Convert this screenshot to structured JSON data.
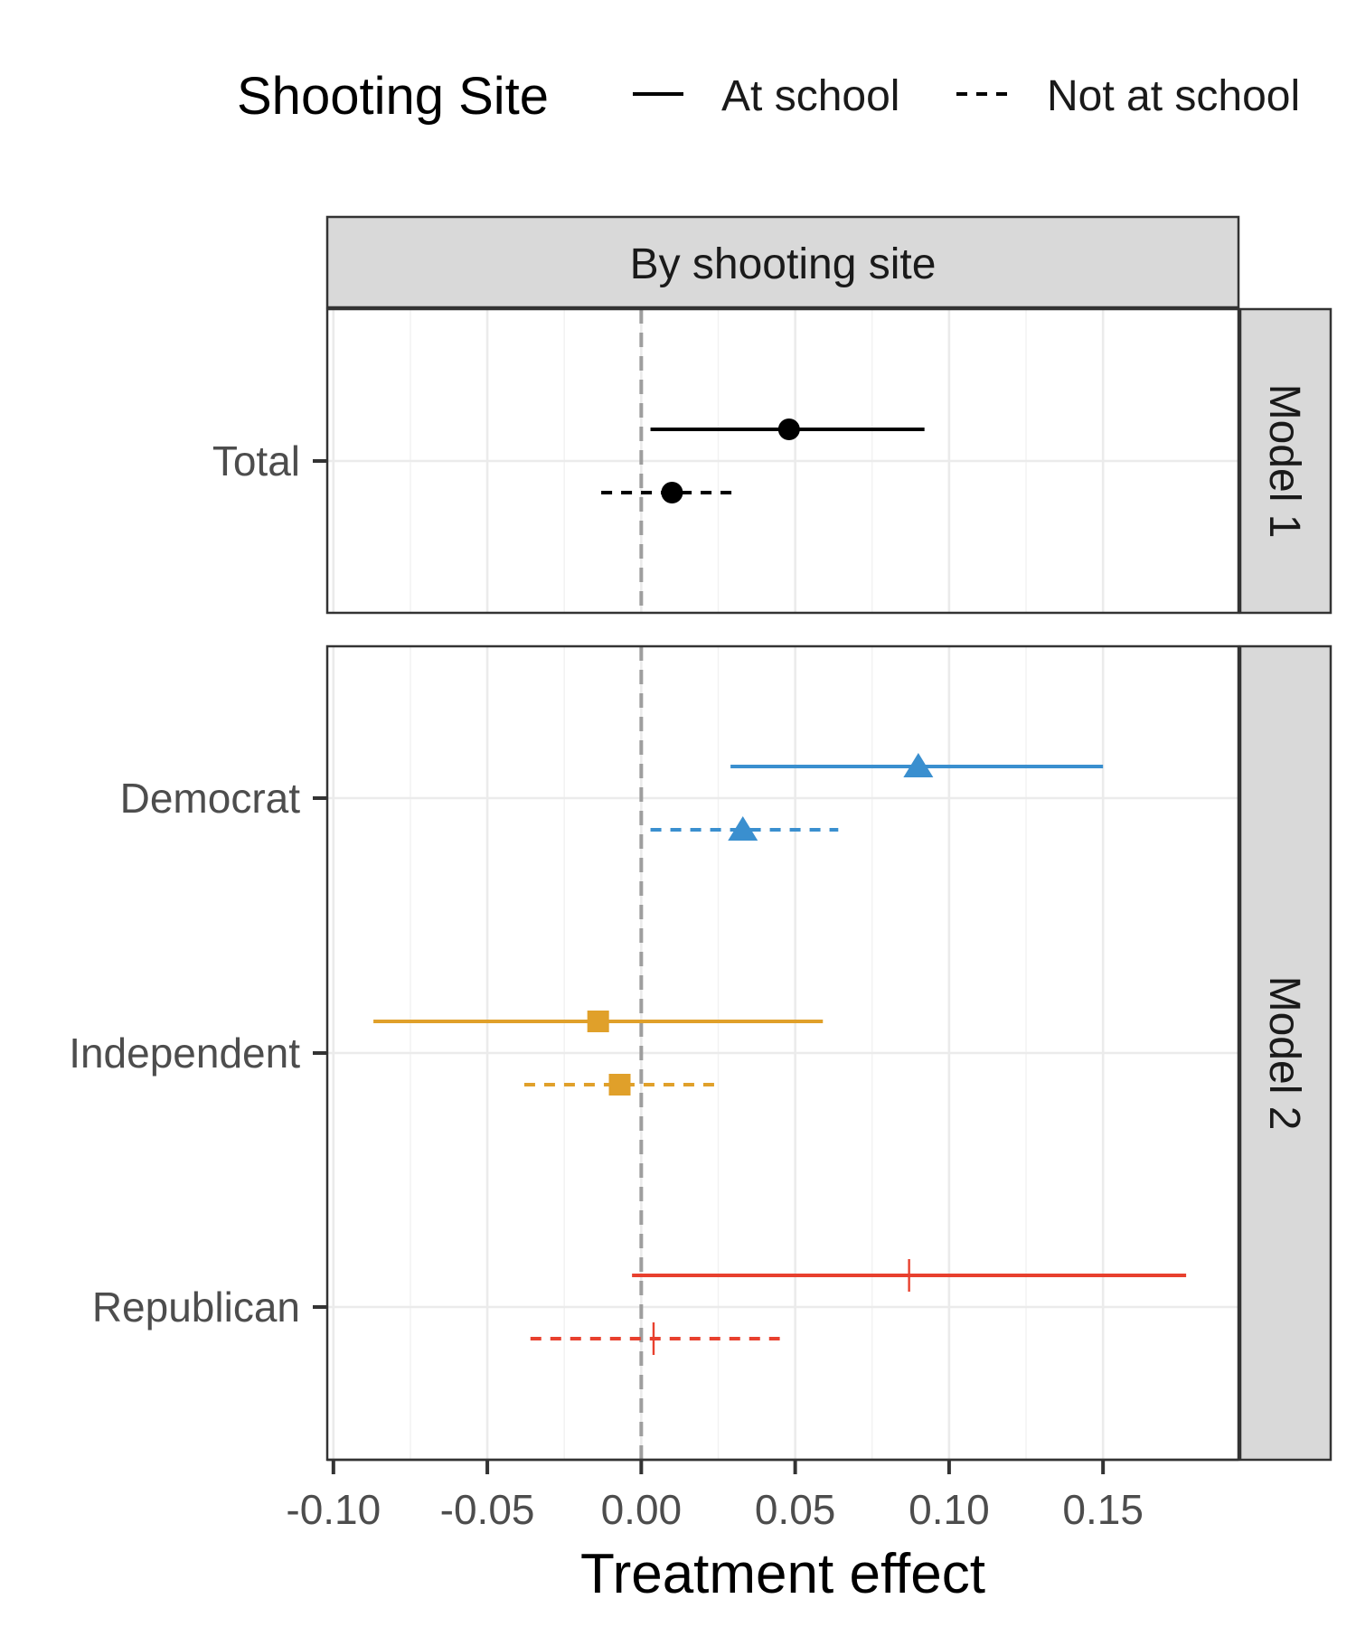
{
  "chart_data": {
    "type": "scatter",
    "subtype": "coefficient plot with horizontal confidence intervals",
    "facet_title": "By shooting site",
    "xlabel": "Treatment effect",
    "xlim": [
      -0.102,
      0.194
    ],
    "x_ticks": [
      "-0.10",
      "-0.05",
      "0.00",
      "0.05",
      "0.10",
      "0.15"
    ],
    "x_tick_values": [
      -0.1,
      -0.05,
      0.0,
      0.05,
      0.1,
      0.15
    ],
    "reference_line": 0.0,
    "grid": true,
    "legend": {
      "title": "Shooting Site",
      "position": "top",
      "entries": [
        {
          "label": "At school",
          "linetype": "solid"
        },
        {
          "label": "Not at school",
          "linetype": "dashed"
        }
      ]
    },
    "panels": [
      {
        "label": "Model 1",
        "rows": [
          {
            "category": "Total",
            "color": "#000000",
            "shape": "circle",
            "series": [
              {
                "site": "At school",
                "estimate": 0.048,
                "lower": 0.003,
                "upper": 0.092
              },
              {
                "site": "Not at school",
                "estimate": 0.01,
                "lower": -0.013,
                "upper": 0.032
              }
            ]
          }
        ]
      },
      {
        "label": "Model 2",
        "rows": [
          {
            "category": "Democrat",
            "color": "#3a8fcf",
            "shape": "triangle",
            "series": [
              {
                "site": "At school",
                "estimate": 0.09,
                "lower": 0.029,
                "upper": 0.15
              },
              {
                "site": "Not at school",
                "estimate": 0.033,
                "lower": 0.003,
                "upper": 0.064
              }
            ]
          },
          {
            "category": "Independent",
            "color": "#e0a02a",
            "shape": "square",
            "series": [
              {
                "site": "At school",
                "estimate": -0.014,
                "lower": -0.087,
                "upper": 0.059
              },
              {
                "site": "Not at school",
                "estimate": -0.007,
                "lower": -0.038,
                "upper": 0.024
              }
            ]
          },
          {
            "category": "Republican",
            "color": "#e8402e",
            "shape": "plus",
            "series": [
              {
                "site": "At school",
                "estimate": 0.087,
                "lower": -0.003,
                "upper": 0.177
              },
              {
                "site": "Not at school",
                "estimate": 0.004,
                "lower": -0.036,
                "upper": 0.045
              }
            ]
          }
        ]
      }
    ]
  }
}
